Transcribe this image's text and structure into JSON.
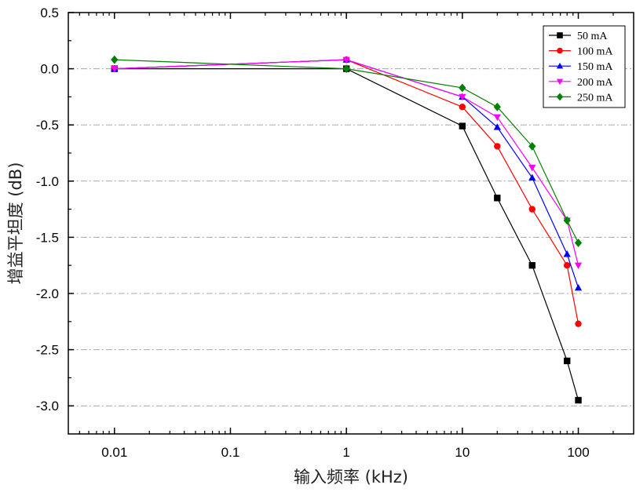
{
  "chart_data": {
    "type": "line",
    "title": "",
    "xlabel": "输入频率 (kHz)",
    "ylabel": "增益平坦度 (dB)",
    "xscale": "log",
    "xlim": [
      0.004,
      300
    ],
    "ylim": [
      -3.25,
      0.5
    ],
    "x_ticks": [
      0.01,
      0.1,
      1,
      10,
      100
    ],
    "x_tick_labels": [
      "0.01",
      "0.1",
      "1",
      "10",
      "100"
    ],
    "y_ticks": [
      0.5,
      0.0,
      -0.5,
      -1.0,
      -1.5,
      -2.0,
      -2.5,
      -3.0
    ],
    "y_tick_labels": [
      "0.5",
      "0.0",
      "-0.5",
      "-1.0",
      "-1.5",
      "-2.0",
      "-2.5",
      "-3.0"
    ],
    "grid": "horizontal dash-dot at major y ticks",
    "legend_position": "top-right",
    "x": [
      0.01,
      1,
      10,
      20,
      40,
      80,
      100
    ],
    "series": [
      {
        "name": "50 mA",
        "color": "#000000",
        "marker": "square",
        "values": [
          0.0,
          0.0,
          -0.51,
          -1.15,
          -1.75,
          -2.6,
          -2.95
        ]
      },
      {
        "name": "100 mA",
        "color": "#ff0000",
        "marker": "circle",
        "values": [
          0.0,
          0.08,
          -0.34,
          -0.69,
          -1.25,
          -1.75,
          -2.27
        ]
      },
      {
        "name": "150 mA",
        "color": "#0000ff",
        "marker": "triangle-up",
        "values": [
          0.0,
          0.08,
          -0.25,
          -0.52,
          -0.97,
          -1.65,
          -1.95
        ]
      },
      {
        "name": "200 mA",
        "color": "#ff00ff",
        "marker": "triangle-down",
        "values": [
          0.0,
          0.08,
          -0.25,
          -0.43,
          -0.88,
          -1.35,
          -1.75
        ]
      },
      {
        "name": "250 mA",
        "color": "#008000",
        "marker": "diamond",
        "values": [
          0.08,
          0.0,
          -0.17,
          -0.34,
          -0.69,
          -1.35,
          -1.55
        ]
      }
    ]
  }
}
